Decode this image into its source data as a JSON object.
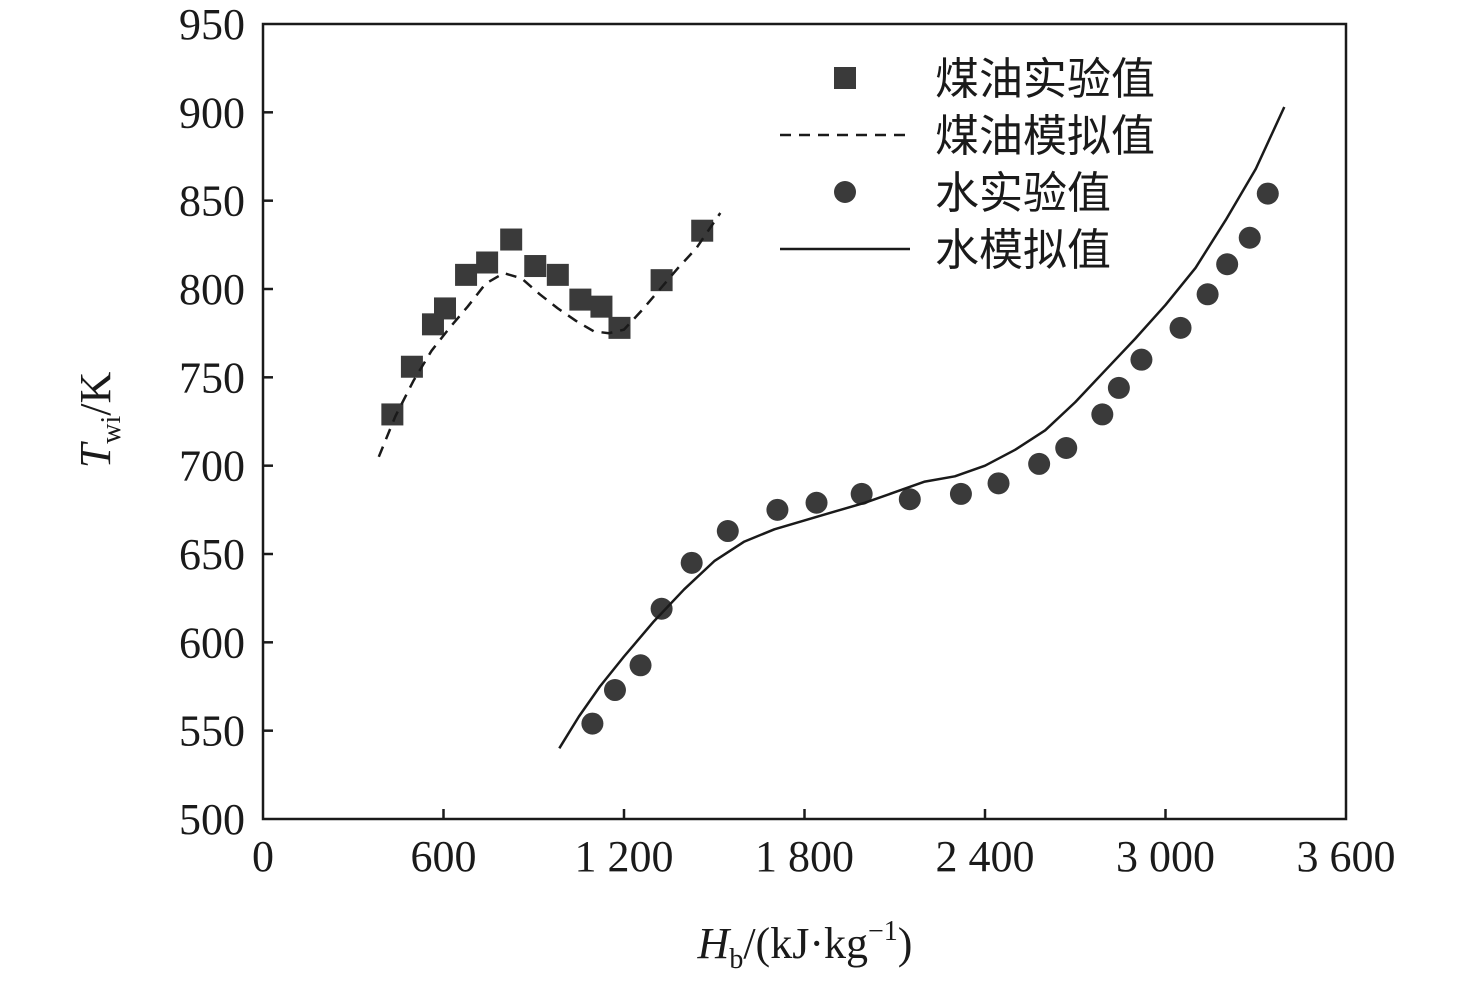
{
  "chart_data": {
    "type": "scatter",
    "title": "",
    "xlabel": {
      "main": "H",
      "sub": "b",
      "rest": "/(kJ·kg",
      "sup": "−1",
      "close": ")"
    },
    "ylabel": {
      "main": "T",
      "sub": "wi",
      "rest": "/K"
    },
    "xlim": [
      0,
      3600
    ],
    "ylim": [
      500,
      950
    ],
    "x_ticks": [
      0,
      600,
      1200,
      1800,
      2400,
      3000,
      3600
    ],
    "x_tick_labels": [
      "0",
      "600",
      "1 200",
      "1 800",
      "2 400",
      "3 000",
      "3 600"
    ],
    "y_ticks": [
      500,
      550,
      600,
      650,
      700,
      750,
      800,
      850,
      900,
      950
    ],
    "y_tick_labels": [
      "500",
      "550",
      "600",
      "650",
      "700",
      "750",
      "800",
      "850",
      "900",
      "950"
    ],
    "grid": false,
    "legend_position": "top-right",
    "colors": {
      "markers": "#3a3a3a",
      "lines": "#1a1a1a",
      "axes": "#1a1a1a"
    },
    "series": [
      {
        "name": "煤油实验值",
        "kind": "markers",
        "marker": "square",
        "x": [
          430,
          495,
          565,
          605,
          675,
          745,
          825,
          905,
          980,
          1055,
          1125,
          1185,
          1325,
          1460
        ],
        "y": [
          729,
          756,
          780,
          789,
          808,
          815,
          828,
          813,
          808,
          794,
          790,
          778,
          805,
          833
        ]
      },
      {
        "name": "煤油模拟值",
        "kind": "line",
        "style": "dashed",
        "x": [
          385,
          440,
          500,
          560,
          620,
          680,
          740,
          800,
          860,
          920,
          980,
          1040,
          1100,
          1150,
          1200,
          1260,
          1320,
          1380,
          1440,
          1520
        ],
        "y": [
          705,
          728,
          748,
          765,
          778,
          790,
          803,
          809,
          806,
          797,
          789,
          782,
          776,
          775,
          777,
          788,
          800,
          812,
          823,
          843
        ]
      },
      {
        "name": "水实验值",
        "kind": "markers",
        "marker": "circle",
        "x": [
          1095,
          1170,
          1255,
          1325,
          1425,
          1545,
          1710,
          1840,
          1990,
          2150,
          2320,
          2445,
          2580,
          2670,
          2790,
          2845,
          2920,
          3050,
          3140,
          3205,
          3280,
          3340
        ],
        "y": [
          554,
          573,
          587,
          619,
          645,
          663,
          675,
          679,
          684,
          681,
          684,
          690,
          701,
          710,
          729,
          744,
          760,
          778,
          797,
          814,
          829,
          854
        ]
      },
      {
        "name": "水模拟值",
        "kind": "line",
        "style": "solid",
        "x": [
          985,
          1050,
          1120,
          1200,
          1300,
          1400,
          1500,
          1600,
          1700,
          1800,
          1900,
          2000,
          2100,
          2200,
          2300,
          2400,
          2500,
          2600,
          2700,
          2800,
          2900,
          3000,
          3100,
          3200,
          3300,
          3395
        ],
        "y": [
          540,
          558,
          575,
          592,
          612,
          630,
          646,
          657,
          664,
          669,
          674,
          679,
          685,
          691,
          694,
          700,
          709,
          720,
          736,
          754,
          772,
          791,
          812,
          839,
          868,
          903
        ]
      }
    ]
  }
}
